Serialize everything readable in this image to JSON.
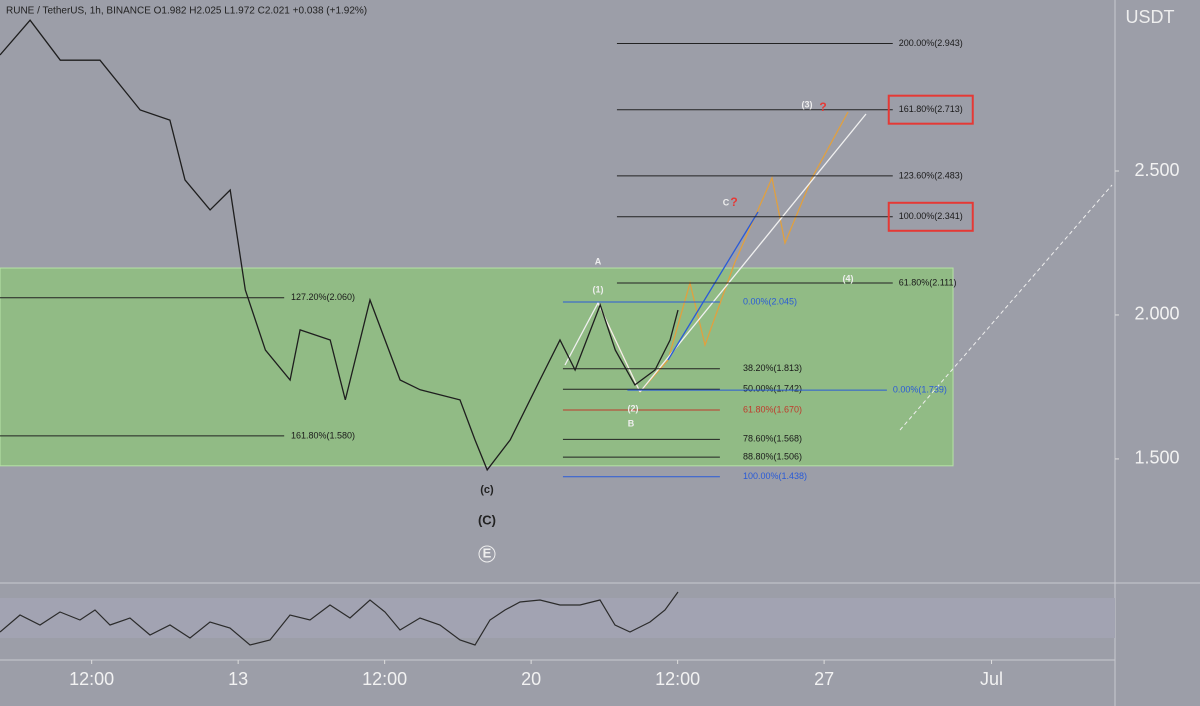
{
  "chart_data": {
    "type": "line",
    "header": "RUNE / TetherUS, 1h, BINANCE  O1.982  H2.025  L1.972  C2.021  +0.038 (+1.92%)",
    "y_unit": "USDT",
    "x": [
      7.31,
      8.03,
      8.75,
      9.7,
      10.66,
      11.37,
      11.73,
      12.33,
      12.81,
      13.17,
      13.65,
      14.24,
      14.48,
      15.2,
      15.56,
      16.15,
      16.87,
      17.35,
      18.3,
      18.66,
      18.95,
      19.5,
      20.21,
      20.69,
      21.05,
      21.65,
      22.01,
      22.48,
      22.96,
      23.32,
      23.51
    ],
    "series": [
      {
        "name": "RUNE / TetherUS",
        "color": "#1e1e1e",
        "values": [
          2.903,
          3.024,
          2.885,
          2.885,
          2.712,
          2.677,
          2.469,
          2.365,
          2.434,
          2.087,
          1.878,
          1.774,
          1.948,
          1.913,
          1.705,
          2.052,
          1.774,
          1.74,
          1.705,
          1.566,
          1.462,
          1.566,
          1.774,
          1.913,
          1.809,
          2.035,
          1.878,
          1.757,
          1.809,
          1.913,
          2.017
        ]
      }
    ],
    "xlim": [
      7.31,
      33.95
    ],
    "xticks": [
      {
        "value": 9.5,
        "label": "12:00"
      },
      13,
      {
        "value": 16.5,
        "label": "12:00"
      },
      20,
      {
        "value": 23.5,
        "label": "12:00"
      },
      27,
      {
        "value": 31,
        "label": "Jul"
      }
    ],
    "ylim": [
      1.069,
      3.094
    ],
    "yticks": [
      {
        "value": 1.5,
        "label": "1.500"
      },
      {
        "value": 2.0,
        "label": "2.000"
      },
      {
        "value": 2.5,
        "label": "2.500"
      }
    ],
    "zone": {
      "color": "#8fbf7f",
      "y": [
        1.476,
        2.163
      ],
      "x": [
        7.31,
        30.08
      ]
    },
    "fib_levels": [
      {
        "label": "200.00%(2.943)",
        "value": 2.943,
        "x": [
          22.05,
          28.64
        ],
        "color": "#222222"
      },
      {
        "label": "161.80%(2.713)",
        "value": 2.713,
        "x": [
          22.05,
          28.64
        ],
        "color": "#222222",
        "boxed": true
      },
      {
        "label": "123.60%(2.483)",
        "value": 2.483,
        "x": [
          22.05,
          28.64
        ],
        "color": "#222222"
      },
      {
        "label": "100.00%(2.341)",
        "value": 2.341,
        "x": [
          22.05,
          28.64
        ],
        "color": "#222222",
        "boxed": true
      },
      {
        "label": "61.80%(2.111)",
        "value": 2.111,
        "x": [
          22.05,
          28.64
        ],
        "color": "#222222"
      },
      {
        "label": "127.20%(2.060)",
        "value": 2.06,
        "x": [
          7.31,
          14.1
        ],
        "color": "#222222"
      },
      {
        "label": "161.80%(1.580)",
        "value": 1.58,
        "x": [
          7.31,
          14.1
        ],
        "color": "#222222"
      },
      {
        "label": "0.00%(2.045)",
        "value": 2.045,
        "x": [
          20.76,
          24.51
        ],
        "color": "#2a5bd7"
      },
      {
        "label": "38.20%(1.813)",
        "value": 1.813,
        "x": [
          20.76,
          24.51
        ],
        "color": "#222222"
      },
      {
        "label": "50.00%(1.742)",
        "value": 1.742,
        "x": [
          20.76,
          24.51
        ],
        "color": "#222222"
      },
      {
        "label": "61.80%(1.670)",
        "value": 1.67,
        "x": [
          20.76,
          24.51
        ],
        "color": "#c0392b"
      },
      {
        "label": "78.60%(1.568)",
        "value": 1.568,
        "x": [
          20.76,
          24.51
        ],
        "color": "#222222"
      },
      {
        "label": "88.80%(1.506)",
        "value": 1.506,
        "x": [
          20.76,
          24.51
        ],
        "color": "#222222"
      },
      {
        "label": "100.00%(1.438)",
        "value": 1.438,
        "x": [
          20.76,
          24.51
        ],
        "color": "#2a5bd7"
      },
      {
        "label": "0.00%(1.739)",
        "value": 1.739,
        "x": [
          22.3,
          28.5
        ],
        "color": "#2a5bd7"
      }
    ],
    "annotations": [
      "A",
      "(1)",
      "(2)",
      "B",
      "(c)",
      "(C)",
      "E",
      "C",
      "?",
      "(3)",
      "?",
      "(4)"
    ]
  }
}
